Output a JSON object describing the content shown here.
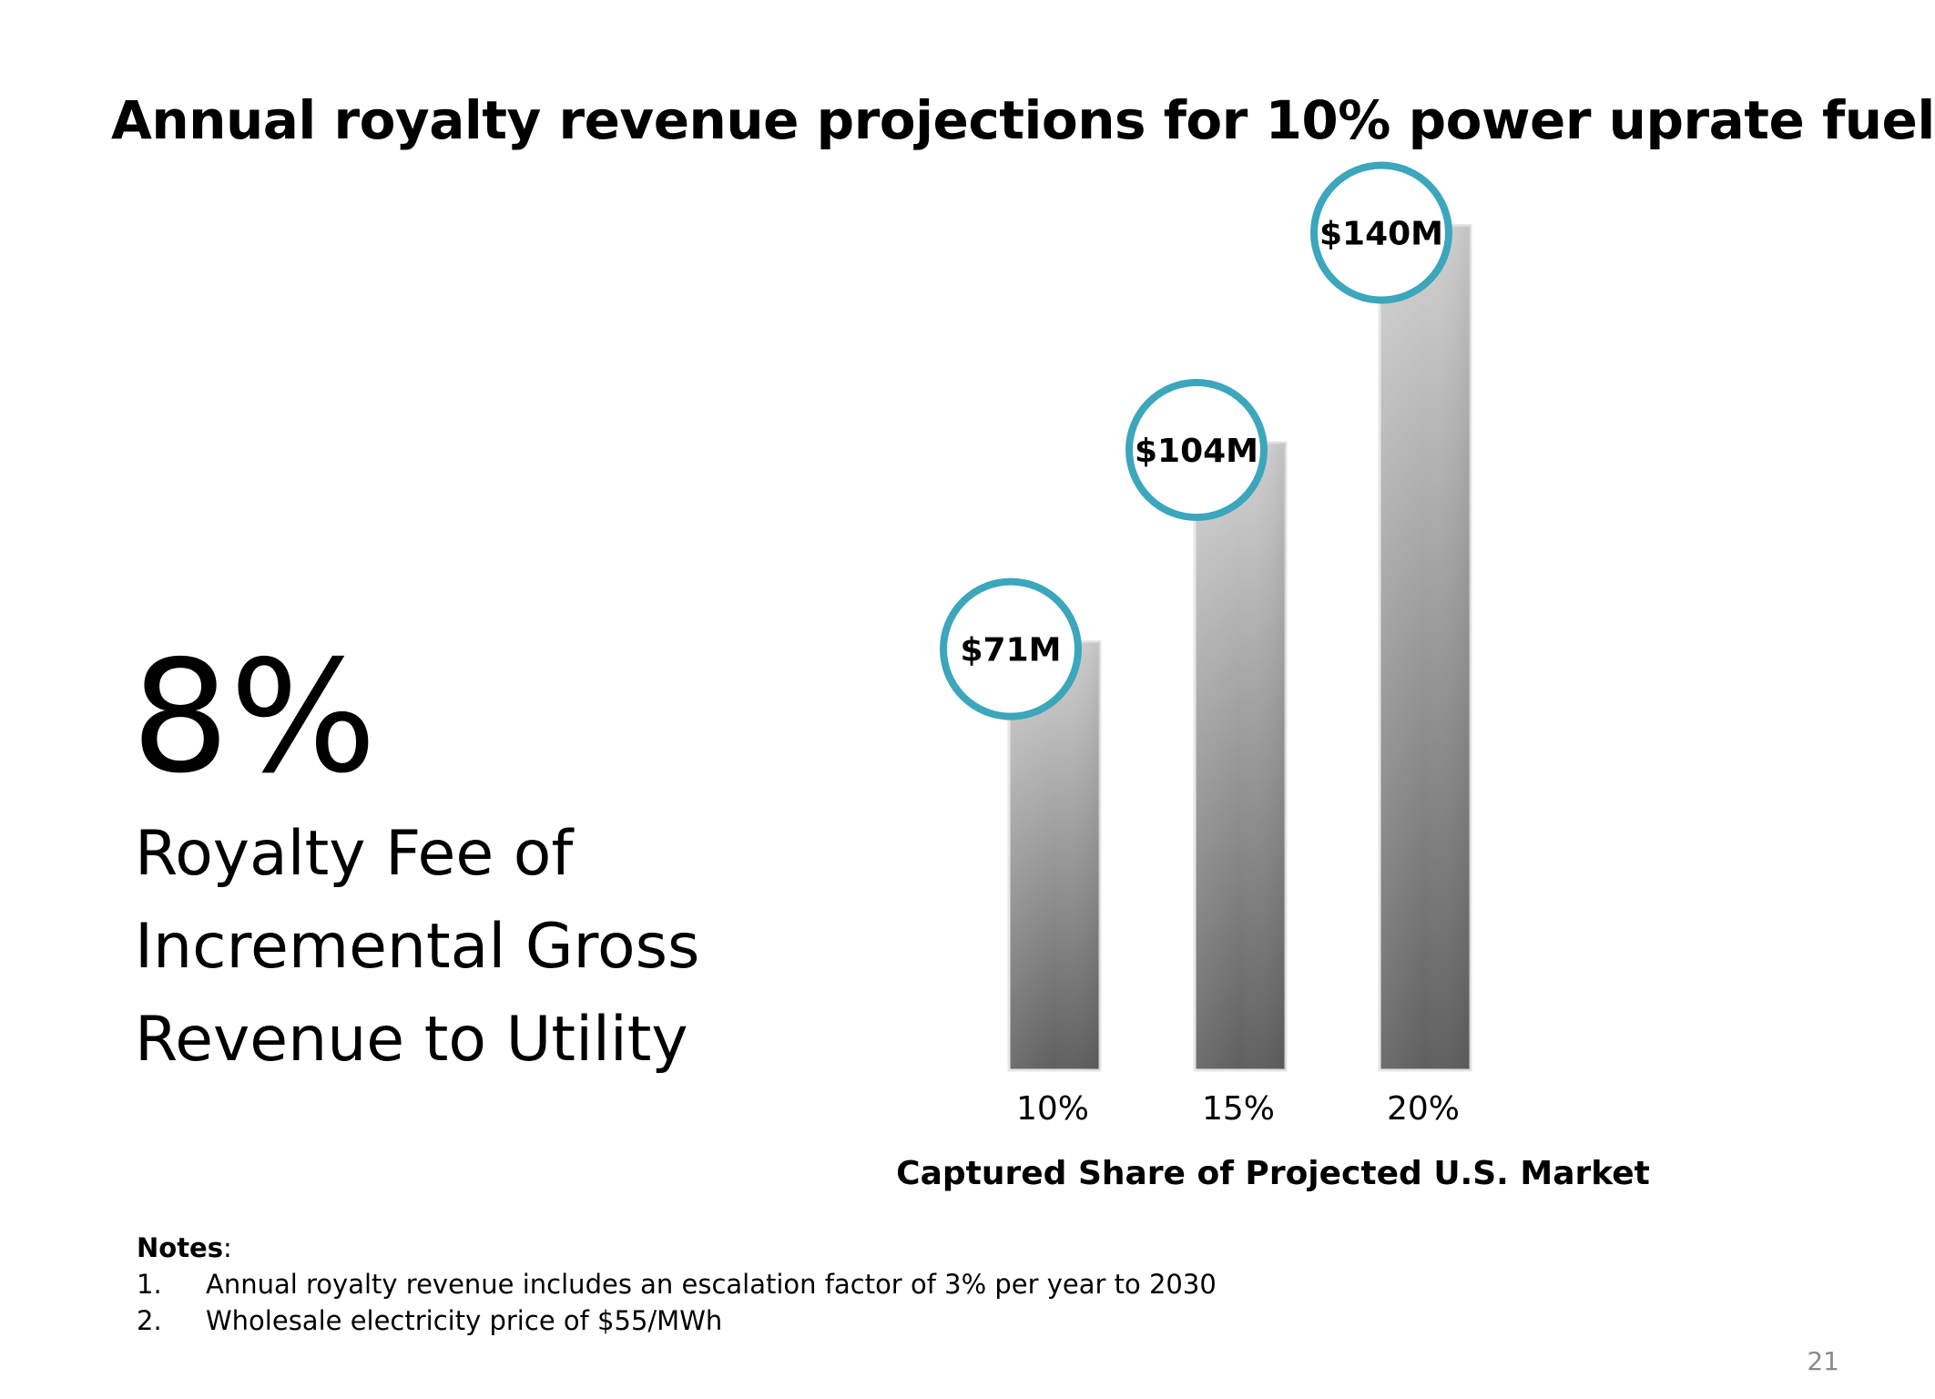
{
  "slide": {
    "title": "Annual royalty revenue projections for 10% power uprate fuel",
    "big_value": "8%",
    "caption_lines": [
      "Royalty Fee of",
      "Incremental Gross",
      "Revenue to Utility"
    ],
    "notes": {
      "heading": "Notes",
      "items": [
        {
          "num": "1.",
          "text": "Annual royalty revenue includes an escalation factor of 3% per year to 2030"
        },
        {
          "num": "2.",
          "text": "Wholesale electricity price of $55/MWh"
        }
      ]
    },
    "page_number": "21"
  },
  "chart_data": {
    "type": "bar",
    "categories": [
      "10%",
      "15%",
      "20%"
    ],
    "values": [
      71,
      104,
      140
    ],
    "data_labels": [
      "$71M",
      "$104M",
      "$140M"
    ],
    "xlabel": "Captured Share of Projected U.S. Market",
    "ylabel": "",
    "ylim": [
      0,
      160
    ],
    "grid": false,
    "legend": "none",
    "colors": {
      "bar_light": "#d2d2d2",
      "bar_dark": "#5f5f5f",
      "label_ring": "#3ba6bc"
    }
  }
}
